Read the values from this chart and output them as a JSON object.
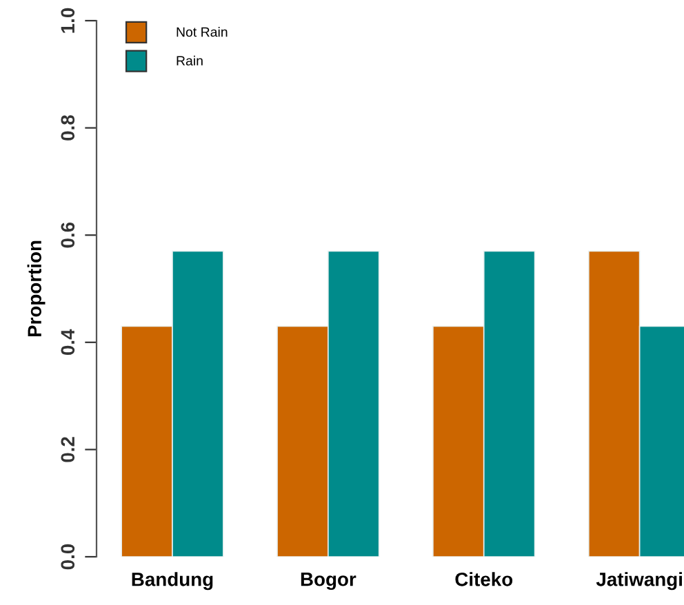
{
  "chart_data": {
    "type": "bar",
    "ylabel": "Proportion",
    "categories": [
      "Bandung",
      "Bogor",
      "Citeko",
      "Jatiwangi"
    ],
    "series": [
      {
        "name": "Not Rain",
        "color": "#cc6600",
        "values": [
          0.43,
          0.43,
          0.43,
          0.57
        ]
      },
      {
        "name": "Rain",
        "color": "#008b8b",
        "values": [
          0.57,
          0.57,
          0.57,
          0.43
        ]
      }
    ],
    "ylim": [
      0,
      1
    ],
    "yticks": [
      {
        "value": 0,
        "label": "0.0"
      },
      0.2,
      0.4,
      0.6,
      0.8,
      {
        "value": 1,
        "label": "1.0"
      }
    ],
    "grid": false,
    "legend": "top left"
  }
}
